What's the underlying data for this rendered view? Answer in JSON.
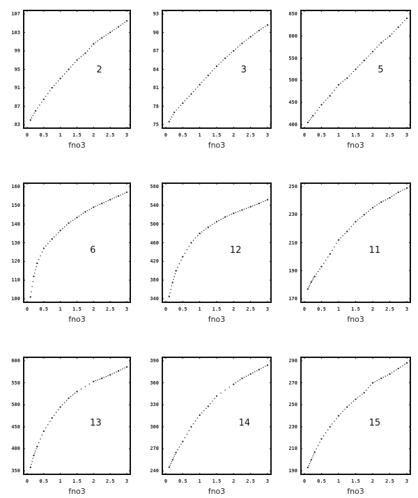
{
  "chart_data": [
    {
      "type": "scatter",
      "label": "2",
      "xlabel": "fno3",
      "ylabel": "",
      "xlim": [
        0,
        3
      ],
      "ylim": [
        83,
        107
      ],
      "xticks": [
        "0",
        "0.5",
        "1",
        "1.5",
        "2",
        "2.5",
        "3"
      ],
      "yticks": [
        "83",
        "87",
        "91",
        "95",
        "99",
        "103",
        "107"
      ],
      "x": [
        0.1,
        0.25,
        0.5,
        0.75,
        1.0,
        1.25,
        1.5,
        1.75,
        2.0,
        2.25,
        2.5,
        2.75,
        3.0
      ],
      "y": [
        84,
        86,
        88.5,
        91,
        93,
        95,
        97,
        98.5,
        100.5,
        101.8,
        103,
        104.2,
        105.5
      ]
    },
    {
      "type": "scatter",
      "label": "3",
      "xlabel": "fno3",
      "ylabel": "",
      "xlim": [
        0,
        3
      ],
      "ylim": [
        75,
        93
      ],
      "xticks": [
        "0",
        "0.5",
        "1",
        "1.5",
        "2",
        "2.5",
        "3"
      ],
      "yticks": [
        "75",
        "78",
        "81",
        "84",
        "87",
        "90",
        "93"
      ],
      "x": [
        0.1,
        0.25,
        0.5,
        0.75,
        1.0,
        1.25,
        1.5,
        1.75,
        2.0,
        2.25,
        2.5,
        2.75,
        3.0
      ],
      "y": [
        75.5,
        77,
        78.5,
        80,
        81.5,
        83,
        84.5,
        85.8,
        87,
        88.2,
        89.3,
        90.3,
        91.2
      ]
    },
    {
      "type": "scatter",
      "label": "5",
      "xlabel": "fno3",
      "ylabel": "",
      "xlim": [
        0,
        3
      ],
      "ylim": [
        400,
        650
      ],
      "xticks": [
        "0",
        "0.5",
        "1",
        "1.5",
        "2",
        "2.5",
        "3"
      ],
      "yticks": [
        "400",
        "450",
        "500",
        "550",
        "600",
        "650"
      ],
      "x": [
        0.1,
        0.25,
        0.5,
        0.75,
        1.0,
        1.25,
        1.5,
        1.75,
        2.0,
        2.25,
        2.5,
        2.75,
        3.0
      ],
      "y": [
        405,
        420,
        445,
        465,
        490,
        505,
        525,
        545,
        565,
        585,
        600,
        620,
        640
      ]
    },
    {
      "type": "scatter",
      "label": "6",
      "xlabel": "fno3",
      "ylabel": "",
      "xlim": [
        0,
        3
      ],
      "ylim": [
        100,
        160
      ],
      "xticks": [
        "0",
        "0.5",
        "1",
        "1.5",
        "2",
        "2.5",
        "3"
      ],
      "yticks": [
        "100",
        "110",
        "120",
        "130",
        "140",
        "150",
        "160"
      ],
      "x": [
        0.1,
        0.2,
        0.3,
        0.5,
        0.75,
        1.0,
        1.25,
        1.5,
        1.75,
        2.0,
        2.25,
        2.5,
        2.75,
        3.0
      ],
      "y": [
        101,
        112,
        119,
        127,
        132,
        136.5,
        140.5,
        143.5,
        146.5,
        149,
        151,
        153,
        155,
        157
      ]
    },
    {
      "type": "scatter",
      "label": "12",
      "xlabel": "fno3",
      "ylabel": "",
      "xlim": [
        0,
        3
      ],
      "ylim": [
        340,
        580
      ],
      "xticks": [
        "0",
        "0.5",
        "1",
        "1.5",
        "2",
        "2.5",
        "3"
      ],
      "yticks": [
        "340",
        "380",
        "420",
        "460",
        "500",
        "540",
        "580"
      ],
      "x": [
        0.1,
        0.2,
        0.3,
        0.5,
        0.75,
        1.0,
        1.25,
        1.5,
        1.75,
        2.0,
        2.25,
        2.5,
        2.75,
        3.0
      ],
      "y": [
        345,
        375,
        400,
        430,
        460,
        480,
        493,
        505,
        515,
        523,
        530,
        537,
        544,
        552
      ]
    },
    {
      "type": "scatter",
      "label": "11",
      "xlabel": "fno3",
      "ylabel": "",
      "xlim": [
        0,
        3
      ],
      "ylim": [
        170,
        250
      ],
      "xticks": [
        "0",
        "0.5",
        "1",
        "1.5",
        "2",
        "2.5",
        "3"
      ],
      "yticks": [
        "170",
        "190",
        "210",
        "230",
        "250"
      ],
      "x": [
        0.1,
        0.2,
        0.3,
        0.5,
        0.75,
        1.0,
        1.25,
        1.5,
        1.75,
        2.0,
        2.25,
        2.5,
        2.75,
        3.0
      ],
      "y": [
        177,
        182,
        186,
        193,
        202,
        212,
        218,
        225,
        230,
        235,
        239,
        242,
        246,
        249
      ]
    },
    {
      "type": "scatter",
      "label": "13",
      "xlabel": "fno3",
      "ylabel": "",
      "xlim": [
        0,
        3
      ],
      "ylim": [
        350,
        600
      ],
      "xticks": [
        "0",
        "0.5",
        "1",
        "1.5",
        "2",
        "2.5",
        "3"
      ],
      "yticks": [
        "350",
        "400",
        "450",
        "500",
        "550",
        "600"
      ],
      "x": [
        0.1,
        0.2,
        0.3,
        0.5,
        0.75,
        1.0,
        1.25,
        1.5,
        2.0,
        2.25,
        2.5,
        2.75,
        3.0
      ],
      "y": [
        358,
        385,
        405,
        440,
        470,
        495,
        515,
        530,
        553,
        560,
        568,
        577,
        586
      ]
    },
    {
      "type": "scatter",
      "label": "14",
      "xlabel": "fno3",
      "ylabel": "",
      "xlim": [
        0,
        3
      ],
      "ylim": [
        240,
        390
      ],
      "xticks": [
        "0",
        "0.5",
        "1",
        "1.5",
        "2",
        "2.5",
        "3"
      ],
      "yticks": [
        "240",
        "270",
        "300",
        "330",
        "360",
        "390"
      ],
      "x": [
        0.1,
        0.2,
        0.3,
        0.5,
        0.75,
        1.0,
        1.25,
        1.5,
        2.0,
        2.25,
        2.5,
        2.75,
        3.0
      ],
      "y": [
        245,
        255,
        265,
        280,
        300,
        316,
        328,
        342,
        358,
        366,
        372,
        378,
        384
      ]
    },
    {
      "type": "scatter",
      "label": "15",
      "xlabel": "fno3",
      "ylabel": "",
      "xlim": [
        0,
        3
      ],
      "ylim": [
        190,
        290
      ],
      "xticks": [
        "0",
        "0.5",
        "1",
        "1.5",
        "2",
        "2.5",
        "3"
      ],
      "yticks": [
        "190",
        "210",
        "230",
        "250",
        "270",
        "290"
      ],
      "x": [
        0.1,
        0.2,
        0.3,
        0.5,
        0.75,
        1.0,
        1.25,
        1.5,
        1.75,
        2.0,
        2.25,
        2.5,
        2.75,
        3.0
      ],
      "y": [
        193,
        200,
        207,
        219,
        230,
        240,
        248,
        255,
        261,
        270,
        274,
        278,
        283,
        288
      ]
    }
  ]
}
